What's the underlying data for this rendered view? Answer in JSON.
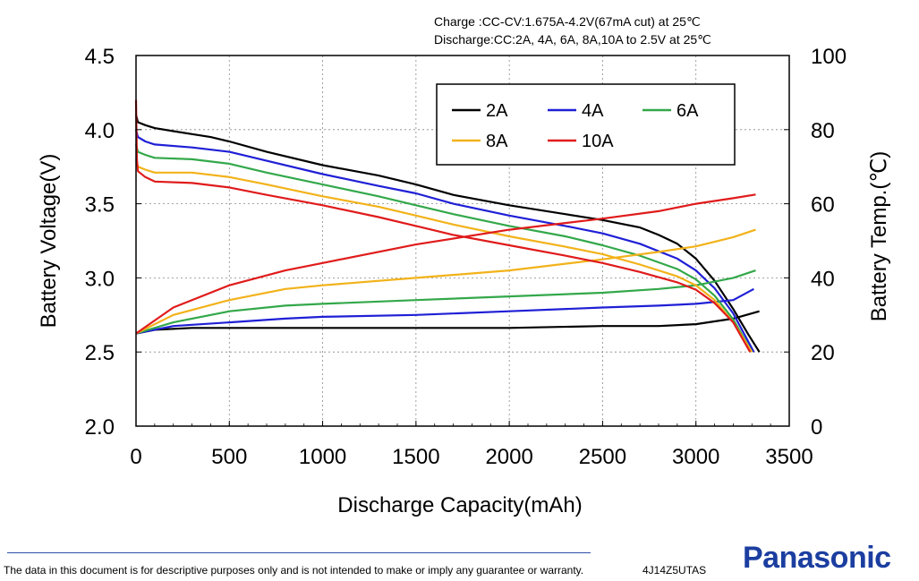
{
  "conditions": {
    "charge": "Charge :CC-CV:1.675A-4.2V(67mA cut) at 25℃",
    "discharge": "Discharge:CC:2A, 4A, 6A, 8A,10A to 2.5V at 25℃"
  },
  "footer": {
    "disclaimer": "The data in this document is for descriptive purposes only and is not intended to make or imply any guarantee or warranty.",
    "doc_id": "4J14Z5UTAS",
    "brand": "Panasonic"
  },
  "chart_data": {
    "type": "line",
    "xlabel": "Discharge Capacity(mAh)",
    "ylabel": "Battery Voltage(V)",
    "y2label": "Battery Temp.(℃)",
    "xlim": [
      0,
      3500
    ],
    "ylim": [
      2.0,
      4.5
    ],
    "y2lim": [
      0,
      100
    ],
    "xticks": [
      "0",
      "500",
      "1000",
      "1500",
      "2000",
      "2500",
      "3000",
      "3500"
    ],
    "yticks": [
      "2.0",
      "2.5",
      "3.0",
      "3.5",
      "4.0",
      "4.5"
    ],
    "y2ticks": [
      "0",
      "20",
      "40",
      "60",
      "80",
      "100"
    ],
    "grid": true,
    "legend": "top-right",
    "series": [
      {
        "name": "2A",
        "color": "#000000",
        "voltage": [
          [
            0,
            4.1
          ],
          [
            10,
            4.05
          ],
          [
            50,
            4.03
          ],
          [
            100,
            4.01
          ],
          [
            200,
            3.99
          ],
          [
            300,
            3.97
          ],
          [
            400,
            3.95
          ],
          [
            500,
            3.92
          ],
          [
            700,
            3.85
          ],
          [
            1000,
            3.76
          ],
          [
            1300,
            3.69
          ],
          [
            1500,
            3.63
          ],
          [
            1700,
            3.56
          ],
          [
            2000,
            3.49
          ],
          [
            2300,
            3.43
          ],
          [
            2500,
            3.39
          ],
          [
            2700,
            3.34
          ],
          [
            2800,
            3.29
          ],
          [
            2900,
            3.23
          ],
          [
            3000,
            3.13
          ],
          [
            3100,
            2.98
          ],
          [
            3200,
            2.79
          ],
          [
            3280,
            2.62
          ],
          [
            3340,
            2.5
          ]
        ],
        "temperature": [
          [
            0,
            25
          ],
          [
            100,
            26
          ],
          [
            300,
            26.5
          ],
          [
            600,
            26.5
          ],
          [
            1000,
            26.5
          ],
          [
            1500,
            26.5
          ],
          [
            2000,
            26.5
          ],
          [
            2500,
            27
          ],
          [
            2800,
            27
          ],
          [
            3000,
            27.5
          ],
          [
            3200,
            29
          ],
          [
            3340,
            31
          ]
        ]
      },
      {
        "name": "4A",
        "color": "#1f1fd6",
        "voltage": [
          [
            0,
            4.0
          ],
          [
            10,
            3.95
          ],
          [
            50,
            3.92
          ],
          [
            100,
            3.9
          ],
          [
            300,
            3.88
          ],
          [
            500,
            3.85
          ],
          [
            700,
            3.79
          ],
          [
            1000,
            3.7
          ],
          [
            1300,
            3.62
          ],
          [
            1500,
            3.57
          ],
          [
            1700,
            3.5
          ],
          [
            2000,
            3.42
          ],
          [
            2300,
            3.35
          ],
          [
            2500,
            3.3
          ],
          [
            2700,
            3.23
          ],
          [
            2900,
            3.13
          ],
          [
            3000,
            3.05
          ],
          [
            3100,
            2.93
          ],
          [
            3200,
            2.76
          ],
          [
            3310,
            2.5
          ]
        ],
        "temperature": [
          [
            0,
            25
          ],
          [
            200,
            27
          ],
          [
            500,
            28
          ],
          [
            800,
            29
          ],
          [
            1000,
            29.5
          ],
          [
            1500,
            30
          ],
          [
            2000,
            31
          ],
          [
            2500,
            32
          ],
          [
            2800,
            32.5
          ],
          [
            3000,
            33
          ],
          [
            3200,
            34
          ],
          [
            3310,
            37
          ]
        ]
      },
      {
        "name": "6A",
        "color": "#33a84a",
        "voltage": [
          [
            0,
            3.9
          ],
          [
            10,
            3.85
          ],
          [
            50,
            3.83
          ],
          [
            100,
            3.81
          ],
          [
            300,
            3.8
          ],
          [
            500,
            3.77
          ],
          [
            700,
            3.71
          ],
          [
            1000,
            3.63
          ],
          [
            1300,
            3.55
          ],
          [
            1500,
            3.49
          ],
          [
            1700,
            3.43
          ],
          [
            2000,
            3.35
          ],
          [
            2300,
            3.28
          ],
          [
            2500,
            3.22
          ],
          [
            2700,
            3.15
          ],
          [
            2900,
            3.06
          ],
          [
            3000,
            2.99
          ],
          [
            3100,
            2.88
          ],
          [
            3200,
            2.72
          ],
          [
            3300,
            2.5
          ]
        ],
        "temperature": [
          [
            0,
            25
          ],
          [
            200,
            28
          ],
          [
            500,
            31
          ],
          [
            800,
            32.5
          ],
          [
            1000,
            33
          ],
          [
            1500,
            34
          ],
          [
            2000,
            35
          ],
          [
            2500,
            36
          ],
          [
            2800,
            37
          ],
          [
            3000,
            38
          ],
          [
            3200,
            40
          ],
          [
            3320,
            42
          ]
        ]
      },
      {
        "name": "8A",
        "color": "#f2b21a",
        "voltage": [
          [
            0,
            3.8
          ],
          [
            10,
            3.75
          ],
          [
            50,
            3.73
          ],
          [
            100,
            3.71
          ],
          [
            300,
            3.71
          ],
          [
            500,
            3.68
          ],
          [
            700,
            3.63
          ],
          [
            1000,
            3.55
          ],
          [
            1300,
            3.48
          ],
          [
            1500,
            3.42
          ],
          [
            1700,
            3.36
          ],
          [
            2000,
            3.28
          ],
          [
            2300,
            3.21
          ],
          [
            2500,
            3.16
          ],
          [
            2700,
            3.09
          ],
          [
            2900,
            3.01
          ],
          [
            3000,
            2.95
          ],
          [
            3100,
            2.85
          ],
          [
            3200,
            2.7
          ],
          [
            3300,
            2.5
          ]
        ],
        "temperature": [
          [
            0,
            25
          ],
          [
            200,
            30
          ],
          [
            500,
            34
          ],
          [
            800,
            37
          ],
          [
            1000,
            38
          ],
          [
            1500,
            40
          ],
          [
            2000,
            42
          ],
          [
            2500,
            45
          ],
          [
            2800,
            47
          ],
          [
            3000,
            48.5
          ],
          [
            3200,
            51
          ],
          [
            3320,
            53
          ]
        ]
      },
      {
        "name": "10A",
        "color": "#e01b1b",
        "voltage": [
          [
            0,
            4.2
          ],
          [
            5,
            3.8
          ],
          [
            10,
            3.72
          ],
          [
            50,
            3.68
          ],
          [
            100,
            3.65
          ],
          [
            300,
            3.64
          ],
          [
            500,
            3.61
          ],
          [
            700,
            3.56
          ],
          [
            1000,
            3.49
          ],
          [
            1300,
            3.41
          ],
          [
            1500,
            3.35
          ],
          [
            1700,
            3.29
          ],
          [
            2000,
            3.22
          ],
          [
            2300,
            3.15
          ],
          [
            2500,
            3.1
          ],
          [
            2700,
            3.04
          ],
          [
            2900,
            2.97
          ],
          [
            3000,
            2.92
          ],
          [
            3100,
            2.83
          ],
          [
            3200,
            2.7
          ],
          [
            3290,
            2.5
          ]
        ],
        "temperature": [
          [
            0,
            25
          ],
          [
            200,
            32
          ],
          [
            500,
            38
          ],
          [
            800,
            42
          ],
          [
            1000,
            44
          ],
          [
            1500,
            49
          ],
          [
            2000,
            53
          ],
          [
            2500,
            56
          ],
          [
            2800,
            58
          ],
          [
            3000,
            60
          ],
          [
            3200,
            61.5
          ],
          [
            3320,
            62.5
          ]
        ]
      }
    ]
  }
}
